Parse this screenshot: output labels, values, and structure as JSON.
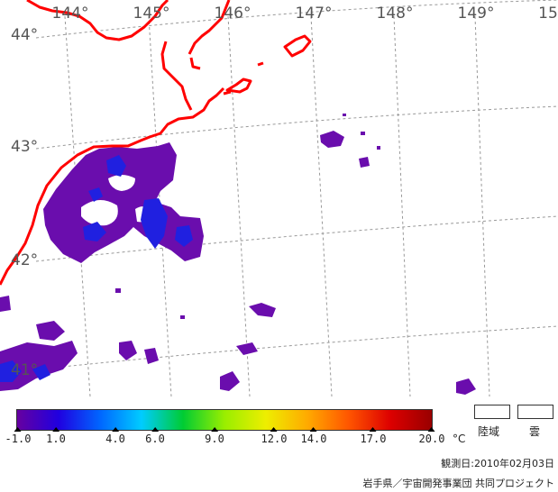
{
  "map": {
    "longitudes": [
      "144°",
      "145°",
      "146°",
      "147°",
      "148°",
      "149°",
      "15"
    ],
    "latitudes": [
      "44°",
      "43°",
      "42°",
      "41°"
    ]
  },
  "colorbar": {
    "ticks": [
      "-1.0",
      "1.0",
      "4.0",
      "6.0",
      "9.0",
      "12.0",
      "14.0",
      "17.0",
      "20.0"
    ],
    "unit": "°C",
    "colors": [
      "#6600a0",
      "#2000e0",
      "#0066ff",
      "#00ccff",
      "#00cc33",
      "#99ee00",
      "#eeee00",
      "#ffaa00",
      "#ff5500",
      "#dd0000",
      "#990000"
    ]
  },
  "legend": {
    "land_label": "陸域",
    "cloud_label": "雲"
  },
  "footer": {
    "observation_date": "観測日:2010年02月03日",
    "credit": "岩手県／宇宙開発事業団 共同プロジェクト"
  },
  "colors": {
    "coastline": "#ff0000",
    "sst_purple": "#6a0dad",
    "sst_blue": "#2020e0",
    "graticule": "#999999"
  }
}
